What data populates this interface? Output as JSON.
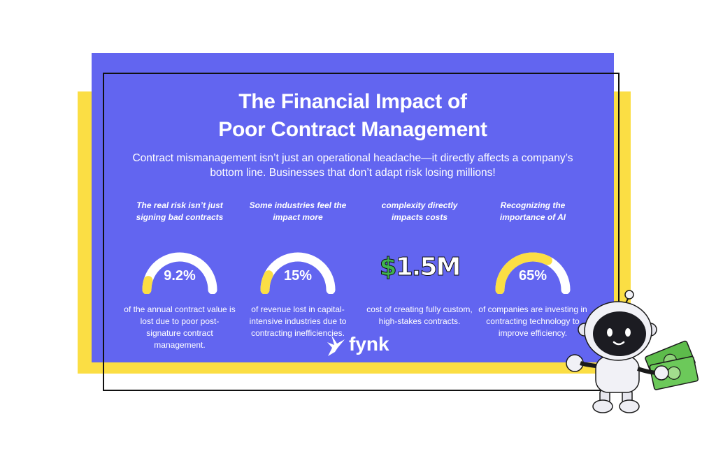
{
  "title_line1": "The Financial Impact of",
  "title_line2": "Poor Contract Management",
  "subtitle": "Contract mismanagement isn’t just an operational headache—it directly affects a company’s bottom line. Businesses that don’t adapt risk losing millions!",
  "stats": [
    {
      "heading": "The real risk isn’t just signing bad contracts",
      "value": "9.2%",
      "percent": 9.2,
      "description": "of the annual contract value is lost due to poor post-signature contract management."
    },
    {
      "heading": "Some industries feel the impact more",
      "value": "15%",
      "percent": 15,
      "description": "of revenue lost in capital-intensive industries due to contracting inefficiencies."
    },
    {
      "heading": "complexity directly impacts costs",
      "value_symbol": "$",
      "value_amount": "1.5M",
      "description": "cost of creating fully custom, high-stakes contracts."
    },
    {
      "heading": "Recognizing the importance of AI",
      "value": "65%",
      "percent": 65,
      "description": "of companies are investing in contracting technology to improve efficiency."
    }
  ],
  "logo_text": "fynk",
  "colors": {
    "panel": "#6265F0",
    "accent_yellow": "#FBDE44",
    "gauge_track": "#FFFFFF",
    "gauge_fill": "#FBDE44",
    "money_green": "#3FB34F"
  },
  "icons": [
    "fynk-bird-logo-icon",
    "robot-mascot-icon",
    "money-bills-icon"
  ]
}
